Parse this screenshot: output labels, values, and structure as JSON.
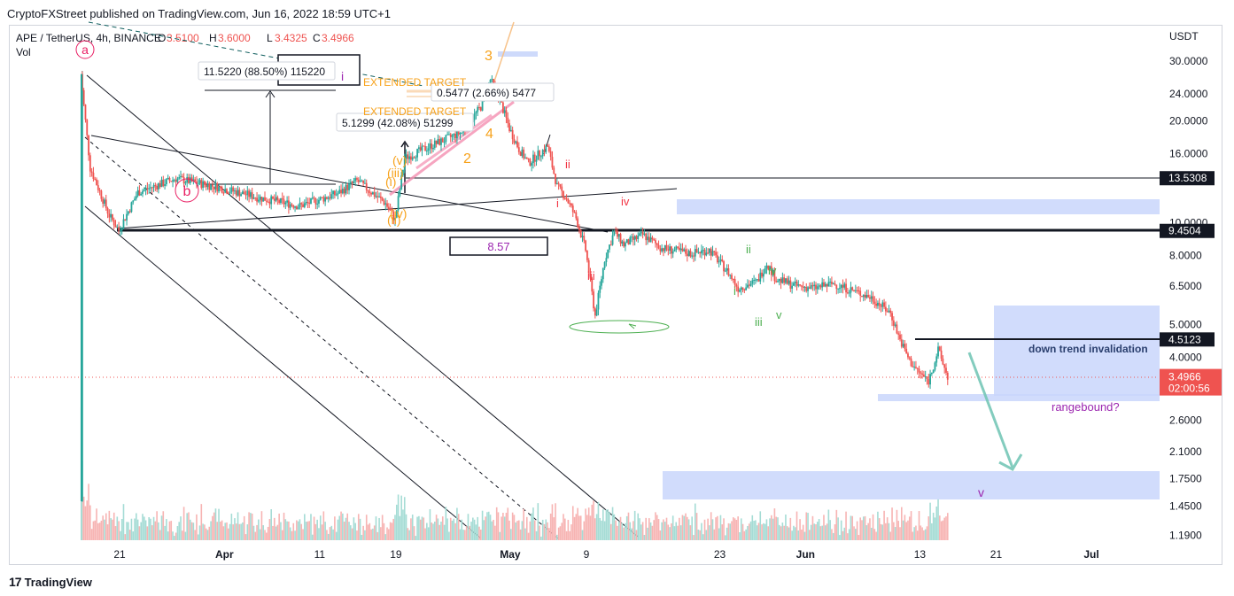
{
  "header": {
    "publisher": "CryptoFXStreet published on TradingView.com, Jun 16, 2022 18:59 UTC+1"
  },
  "legend": {
    "symbol": "APE / TetherUS, 4h, BINANCE",
    "o_label": "O",
    "o": "3.5100",
    "h_label": "H",
    "h": "3.6000",
    "l_label": "L",
    "l": "3.4325",
    "c_label": "C",
    "c": "3.4966",
    "vol": "Vol"
  },
  "footer": {
    "brand": "TradingView"
  },
  "colors": {
    "up": "#26a69a",
    "down": "#ef5350",
    "label_bg": "#131722",
    "zone": "#c9d6fb",
    "orange": "#f7a21b",
    "purple": "#9c27b0",
    "pink": "#e91e63",
    "green": "#4caf50",
    "red": "#f23645",
    "blue_text": "#2a3f6e"
  },
  "chart_data": {
    "type": "candlestick",
    "title": "APE / TetherUS, 4h, BINANCE",
    "currency": "USDT",
    "y_scale": "log",
    "ylim": [
      1.15,
      38
    ],
    "x_tick_labels": [
      "21",
      "Apr",
      "11",
      "19",
      "May",
      "9",
      "23",
      "Jun",
      "13",
      "21",
      "Jul"
    ],
    "y_tick_labels": [
      "30.0000",
      "24.0000",
      "20.0000",
      "16.0000",
      "10.0000",
      "8.0000",
      "6.5000",
      "5.0000",
      "4.0000",
      "2.6000",
      "2.1000",
      "1.7500",
      "1.4500",
      "1.1900"
    ],
    "price_labels": [
      {
        "value": 13.5308,
        "text": "13.5308"
      },
      {
        "value": 9.4504,
        "text": "9.4504"
      },
      {
        "value": 4.5123,
        "text": "4.5123"
      }
    ],
    "last_price": {
      "value": 3.4966,
      "text": "3.4966",
      "countdown": "02:00:56"
    },
    "price_path_anchors": [
      {
        "t": "Mar 17",
        "v": 1.5
      },
      {
        "t": "Mar 17",
        "v": 27.5
      },
      {
        "t": "Mar 18",
        "v": 14.5
      },
      {
        "t": "Mar 20",
        "v": 10.5
      },
      {
        "t": "Mar 21",
        "v": 9.5
      },
      {
        "t": "Mar 23",
        "v": 12.3
      },
      {
        "t": "Mar 27",
        "v": 13.5
      },
      {
        "t": "Mar 31",
        "v": 12.8
      },
      {
        "t": "Apr 5",
        "v": 11.8
      },
      {
        "t": "Apr 9",
        "v": 11.2
      },
      {
        "t": "Apr 13",
        "v": 12.2
      },
      {
        "t": "Apr 15",
        "v": 13.3
      },
      {
        "t": "Apr 18",
        "v": 11.4
      },
      {
        "t": "Apr 19",
        "v": 10.2
      },
      {
        "t": "Apr 20",
        "v": 15.5
      },
      {
        "t": "Apr 23",
        "v": 17.0
      },
      {
        "t": "Apr 26",
        "v": 18.5
      },
      {
        "t": "Apr 28",
        "v": 22.0
      },
      {
        "t": "Apr 29",
        "v": 26.5
      },
      {
        "t": "Apr 30",
        "v": 23.0
      },
      {
        "t": "May 1",
        "v": 19.0
      },
      {
        "t": "May 2",
        "v": 16.5
      },
      {
        "t": "May 3",
        "v": 15.0
      },
      {
        "t": "May 5",
        "v": 16.8
      },
      {
        "t": "May 6",
        "v": 12.8
      },
      {
        "t": "May 7",
        "v": 11.8
      },
      {
        "t": "May 8",
        "v": 10.3
      },
      {
        "t": "May 9",
        "v": 8.3
      },
      {
        "t": "May 10",
        "v": 5.3
      },
      {
        "t": "May 11",
        "v": 7.8
      },
      {
        "t": "May 12",
        "v": 9.4
      },
      {
        "t": "May 13",
        "v": 8.6
      },
      {
        "t": "May 15",
        "v": 9.2
      },
      {
        "t": "May 17",
        "v": 8.4
      },
      {
        "t": "May 20",
        "v": 8.1
      },
      {
        "t": "May 22",
        "v": 8.3
      },
      {
        "t": "May 24",
        "v": 7.1
      },
      {
        "t": "May 25",
        "v": 6.4
      },
      {
        "t": "May 27",
        "v": 6.7
      },
      {
        "t": "May 28",
        "v": 7.6
      },
      {
        "t": "May 29",
        "v": 6.8
      },
      {
        "t": "May 31",
        "v": 6.5
      },
      {
        "t": "Jun 2",
        "v": 6.4
      },
      {
        "t": "Jun 4",
        "v": 6.6
      },
      {
        "t": "Jun 6",
        "v": 6.3
      },
      {
        "t": "Jun 8",
        "v": 6.0
      },
      {
        "t": "Jun 10",
        "v": 5.4
      },
      {
        "t": "Jun 11",
        "v": 4.5
      },
      {
        "t": "Jun 12",
        "v": 3.9
      },
      {
        "t": "Jun 13",
        "v": 3.6
      },
      {
        "t": "Jun 14",
        "v": 3.4
      },
      {
        "t": "Jun 15",
        "v": 4.2
      },
      {
        "t": "Jun 16",
        "v": 3.4966
      }
    ],
    "annotations": {
      "measure1": "11.5220 (88.50%) 115220",
      "measure2": "0.5477 (2.66%) 5477",
      "measure3": "5.1299 (42.08%) 51299",
      "extended_target_1": "EXTENDED TARGET",
      "extended_target_2": "EXTENDED TARGET",
      "box_value": "8.57",
      "down_trend": "down trend invalidation",
      "rangebound": "rangebound?",
      "wave_a": "a",
      "wave_b": "b",
      "wave_v_target": "v",
      "wave_orange_3": "3",
      "wave_orange_4": "4",
      "wave_orange_2": "2",
      "wave_orange_i": "(i)",
      "wave_orange_ii": "(ii)",
      "wave_orange_iii": "(iii)",
      "wave_orange_iv": "(iv)",
      "wave_orange_v": "(v)",
      "wave_purple_i": "i",
      "wave_red_i": "i",
      "wave_red_ii": "ii",
      "wave_red_iii": "iii",
      "wave_red_iv": "iv",
      "wave_green_i": "i",
      "wave_green_ii": "ii",
      "wave_green_iii": "iii",
      "wave_green_iv": "iv",
      "wave_green_v": "v"
    }
  }
}
